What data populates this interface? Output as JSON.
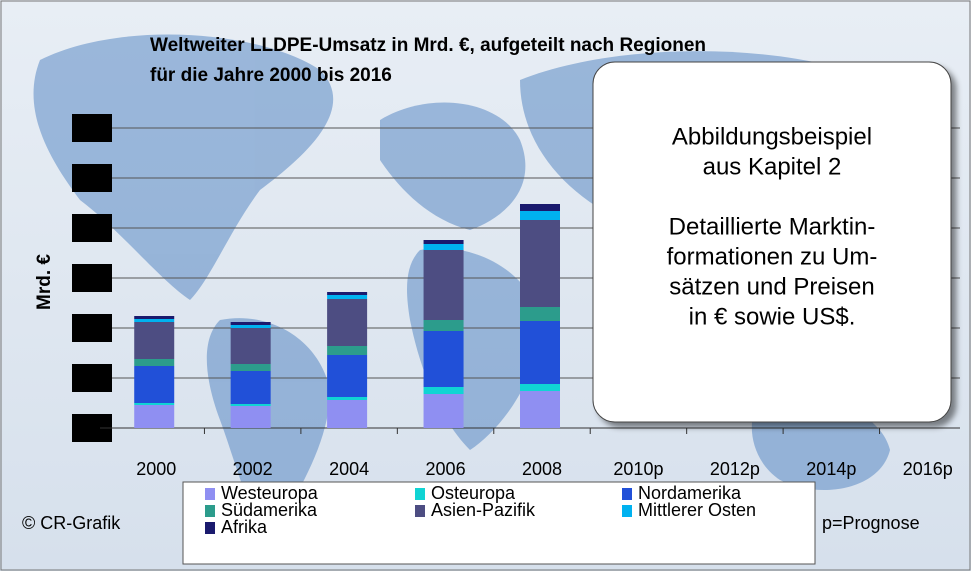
{
  "chart_data": {
    "type": "stacked_bar",
    "title": "Weltweiter LLDPE-Umsatz in Mrd. €, aufgeteilt nach Regionen",
    "subtitle": "für die Jahre 2000 bis 2016",
    "y_label": "Mrd. €",
    "categories": [
      "2000",
      "2002",
      "2004",
      "2006",
      "2008",
      "2010p",
      "2012p",
      "2014p",
      "2016p"
    ],
    "series": [
      {
        "name": "Westeuropa",
        "color": "#8f8ff2",
        "values": [
          0.46,
          0.44,
          0.56,
          0.68,
          0.74,
          null,
          null,
          null,
          null
        ]
      },
      {
        "name": "Osteuropa",
        "color": "#10d4d4",
        "values": [
          0.04,
          0.04,
          0.06,
          0.14,
          0.14,
          null,
          null,
          null,
          null
        ]
      },
      {
        "name": "Nordamerika",
        "color": "#2150d8",
        "values": [
          0.74,
          0.66,
          0.84,
          1.12,
          1.26,
          null,
          null,
          null,
          null
        ]
      },
      {
        "name": "Südamerika",
        "color": "#2c9c8c",
        "values": [
          0.14,
          0.14,
          0.18,
          0.22,
          0.28,
          null,
          null,
          null,
          null
        ]
      },
      {
        "name": "Asien-Pazifik",
        "color": "#4d4d82",
        "values": [
          0.74,
          0.72,
          0.94,
          1.4,
          1.74,
          null,
          null,
          null,
          null
        ]
      },
      {
        "name": "Mittlerer Osten",
        "color": "#00b2f0",
        "values": [
          0.06,
          0.06,
          0.08,
          0.12,
          0.18,
          null,
          null,
          null,
          null
        ]
      },
      {
        "name": "Afrika",
        "color": "#1a1a6e",
        "values": [
          0.06,
          0.06,
          0.06,
          0.08,
          0.14,
          null,
          null,
          null,
          null
        ]
      }
    ],
    "ylim": [
      0,
      6
    ],
    "yticks": [
      0,
      1,
      2,
      3,
      4,
      5,
      6
    ],
    "grid": true,
    "credit": "© CR-Grafik",
    "note": "p=Prognose",
    "annotation": [
      "Abbildungsbeispiel",
      "aus Kapitel 2",
      "",
      "Detaillierte Marktin-",
      "formationen zu Um-",
      "sätzen und Preisen",
      "in € sowie US$."
    ]
  }
}
